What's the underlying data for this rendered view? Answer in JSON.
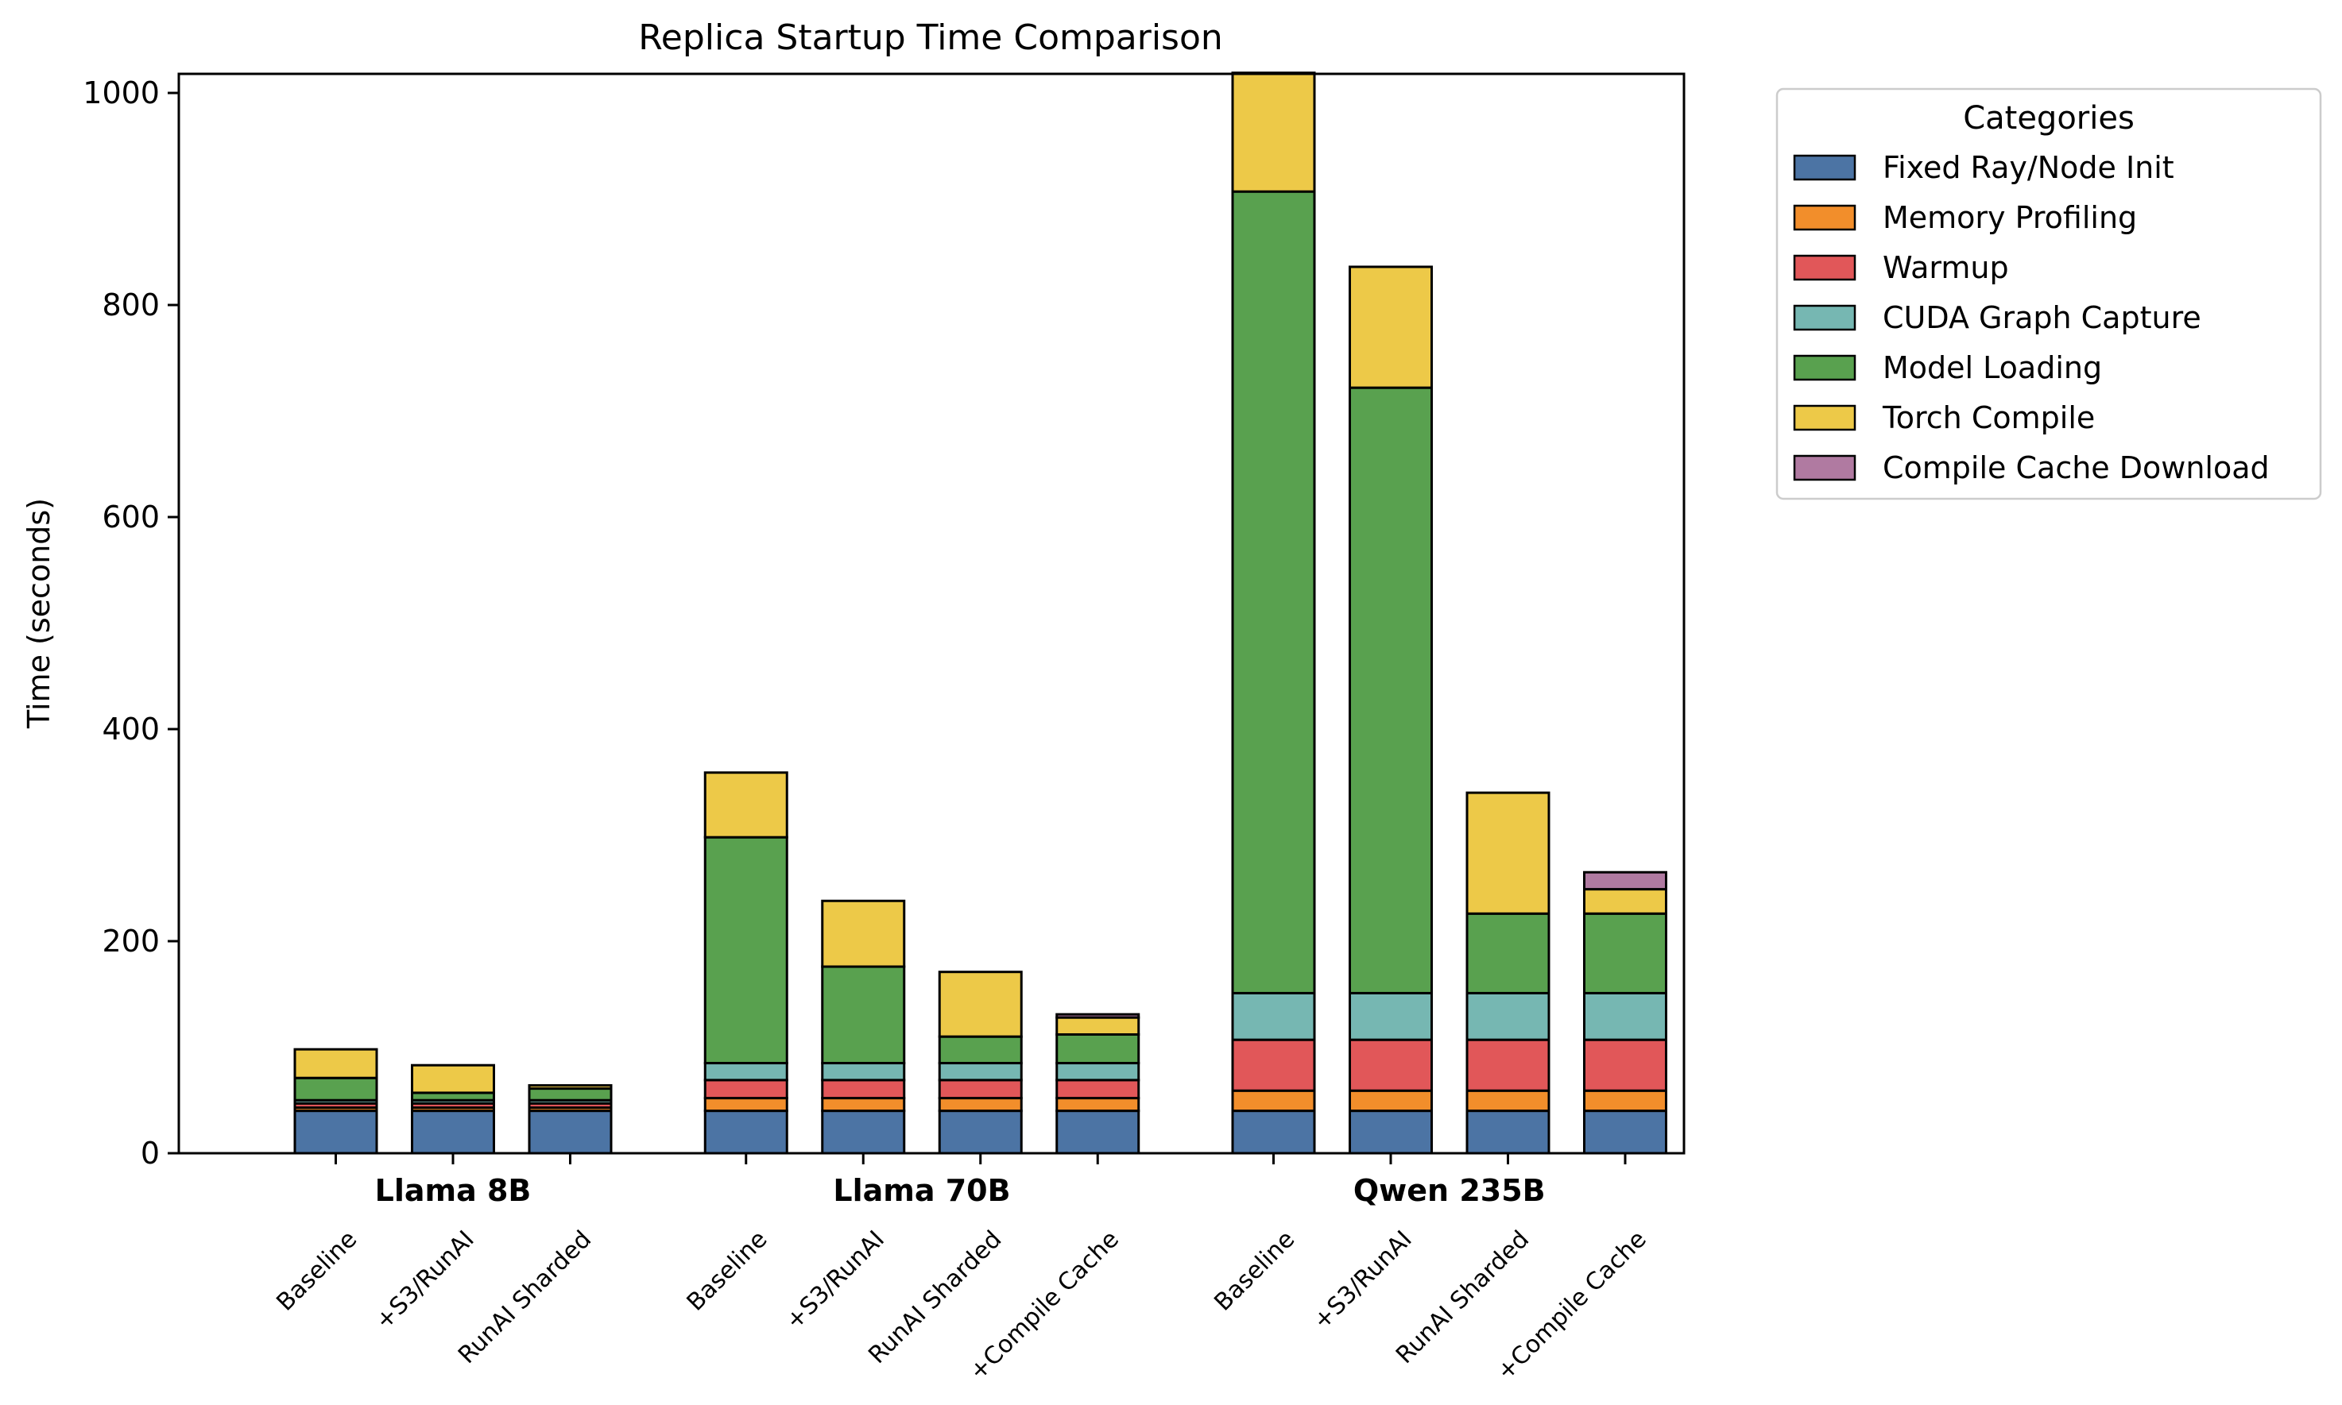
{
  "chart_data": {
    "type": "bar",
    "stacked": true,
    "title": "Replica Startup Time Comparison",
    "ylabel": "Time (seconds)",
    "xlabel": "",
    "ylim": [
      0,
      1018
    ],
    "yticks": [
      0,
      200,
      400,
      600,
      800,
      1000
    ],
    "grid": false,
    "legend": {
      "title": "Categories",
      "placement": "outside-top-right"
    },
    "series": [
      {
        "name": "Fixed Ray/Node Init",
        "color": "#4c74a4"
      },
      {
        "name": "Memory Profiling",
        "color": "#f28e2b"
      },
      {
        "name": "Warmup",
        "color": "#e15759"
      },
      {
        "name": "CUDA Graph Capture",
        "color": "#76b7b2"
      },
      {
        "name": "Model Loading",
        "color": "#59a14f"
      },
      {
        "name": "Torch Compile",
        "color": "#edc948"
      },
      {
        "name": "Compile Cache Download",
        "color": "#b07aa1"
      }
    ],
    "groups": [
      {
        "name": "Llama 8B",
        "bars": [
          {
            "label": "Baseline",
            "values": [
              40,
              3,
              4,
              3,
              21,
              27,
              0
            ]
          },
          {
            "label": "+S3/RunAI",
            "values": [
              40,
              3,
              4,
              3,
              7,
              26,
              0
            ]
          },
          {
            "label": "RunAI Sharded",
            "values": [
              40,
              3,
              4,
              3,
              11,
              3,
              0
            ]
          }
        ]
      },
      {
        "name": "Llama 70B",
        "bars": [
          {
            "label": "Baseline",
            "values": [
              40,
              12,
              17,
              16,
              213,
              61,
              0
            ]
          },
          {
            "label": "+S3/RunAI",
            "values": [
              40,
              12,
              17,
              16,
              91,
              62,
              0
            ]
          },
          {
            "label": "RunAI Sharded",
            "values": [
              40,
              12,
              17,
              16,
              25,
              61,
              0
            ]
          },
          {
            "label": "+Compile Cache",
            "values": [
              40,
              12,
              17,
              16,
              27,
              16,
              3
            ]
          }
        ]
      },
      {
        "name": "Qwen 235B",
        "bars": [
          {
            "label": "Baseline",
            "values": [
              40,
              19,
              48,
              44,
              756,
              112,
              0
            ]
          },
          {
            "label": "+S3/RunAI",
            "values": [
              40,
              19,
              48,
              44,
              571,
              114,
              0
            ]
          },
          {
            "label": "RunAI Sharded",
            "values": [
              40,
              19,
              48,
              44,
              75,
              114,
              0
            ]
          },
          {
            "label": "+Compile Cache",
            "values": [
              40,
              19,
              48,
              44,
              75,
              23,
              16
            ]
          }
        ]
      }
    ]
  }
}
